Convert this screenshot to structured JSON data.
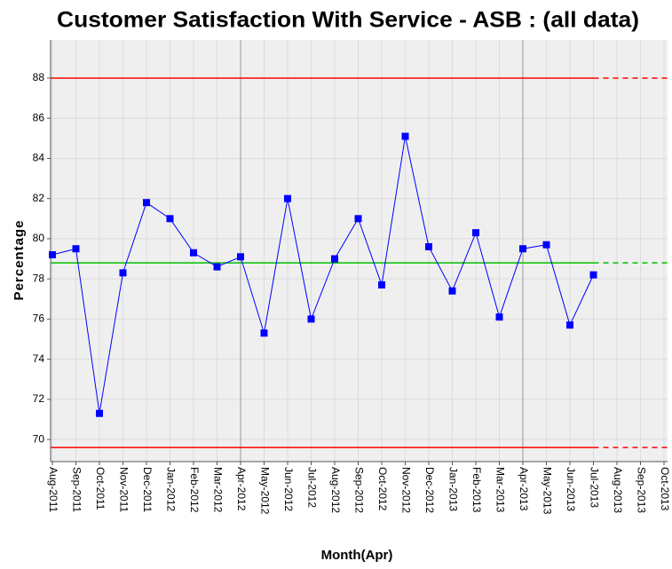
{
  "chart_data": {
    "type": "line",
    "title": "Customer Satisfaction With Service - ASB : (all data)",
    "x_label": "Month(Apr)",
    "y_label": "Percentage",
    "categories": [
      "Aug-2011",
      "Sep-2011",
      "Oct-2011",
      "Nov-2011",
      "Dec-2011",
      "Jan-2012",
      "Feb-2012",
      "Mar-2012",
      "Apr-2012",
      "May-2012",
      "Jun-2012",
      "Jul-2012",
      "Aug-2012",
      "Sep-2012",
      "Oct-2012",
      "Nov-2012",
      "Dec-2012",
      "Jan-2013",
      "Feb-2013",
      "Mar-2013",
      "Apr-2013",
      "May-2013",
      "Jun-2013",
      "Jul-2013",
      "Aug-2013",
      "Sep-2013",
      "Oct-2013"
    ],
    "series": [
      {
        "color": "#0000ff",
        "values": [
          79.2,
          79.5,
          71.3,
          78.3,
          81.8,
          81.0,
          79.3,
          78.6,
          79.1,
          75.3,
          82.0,
          76.0,
          79.0,
          81.0,
          77.7,
          85.1,
          79.6,
          77.4,
          80.3,
          76.1,
          79.5,
          79.7,
          75.7,
          78.2,
          null,
          null,
          null
        ]
      }
    ],
    "reference_lines": [
      {
        "value": 88.0,
        "color": "#ff0000"
      },
      {
        "value": 78.8,
        "color": "#00c000"
      },
      {
        "value": 69.6,
        "color": "#ff0000"
      }
    ],
    "major_x_grid": [
      "Apr-2012",
      "Apr-2013"
    ],
    "ylim": [
      68.9,
      89.9
    ],
    "yticks": [
      70,
      72,
      74,
      76,
      78,
      80,
      82,
      84,
      86,
      88
    ],
    "grid": true,
    "plot_background": "#efefef"
  }
}
